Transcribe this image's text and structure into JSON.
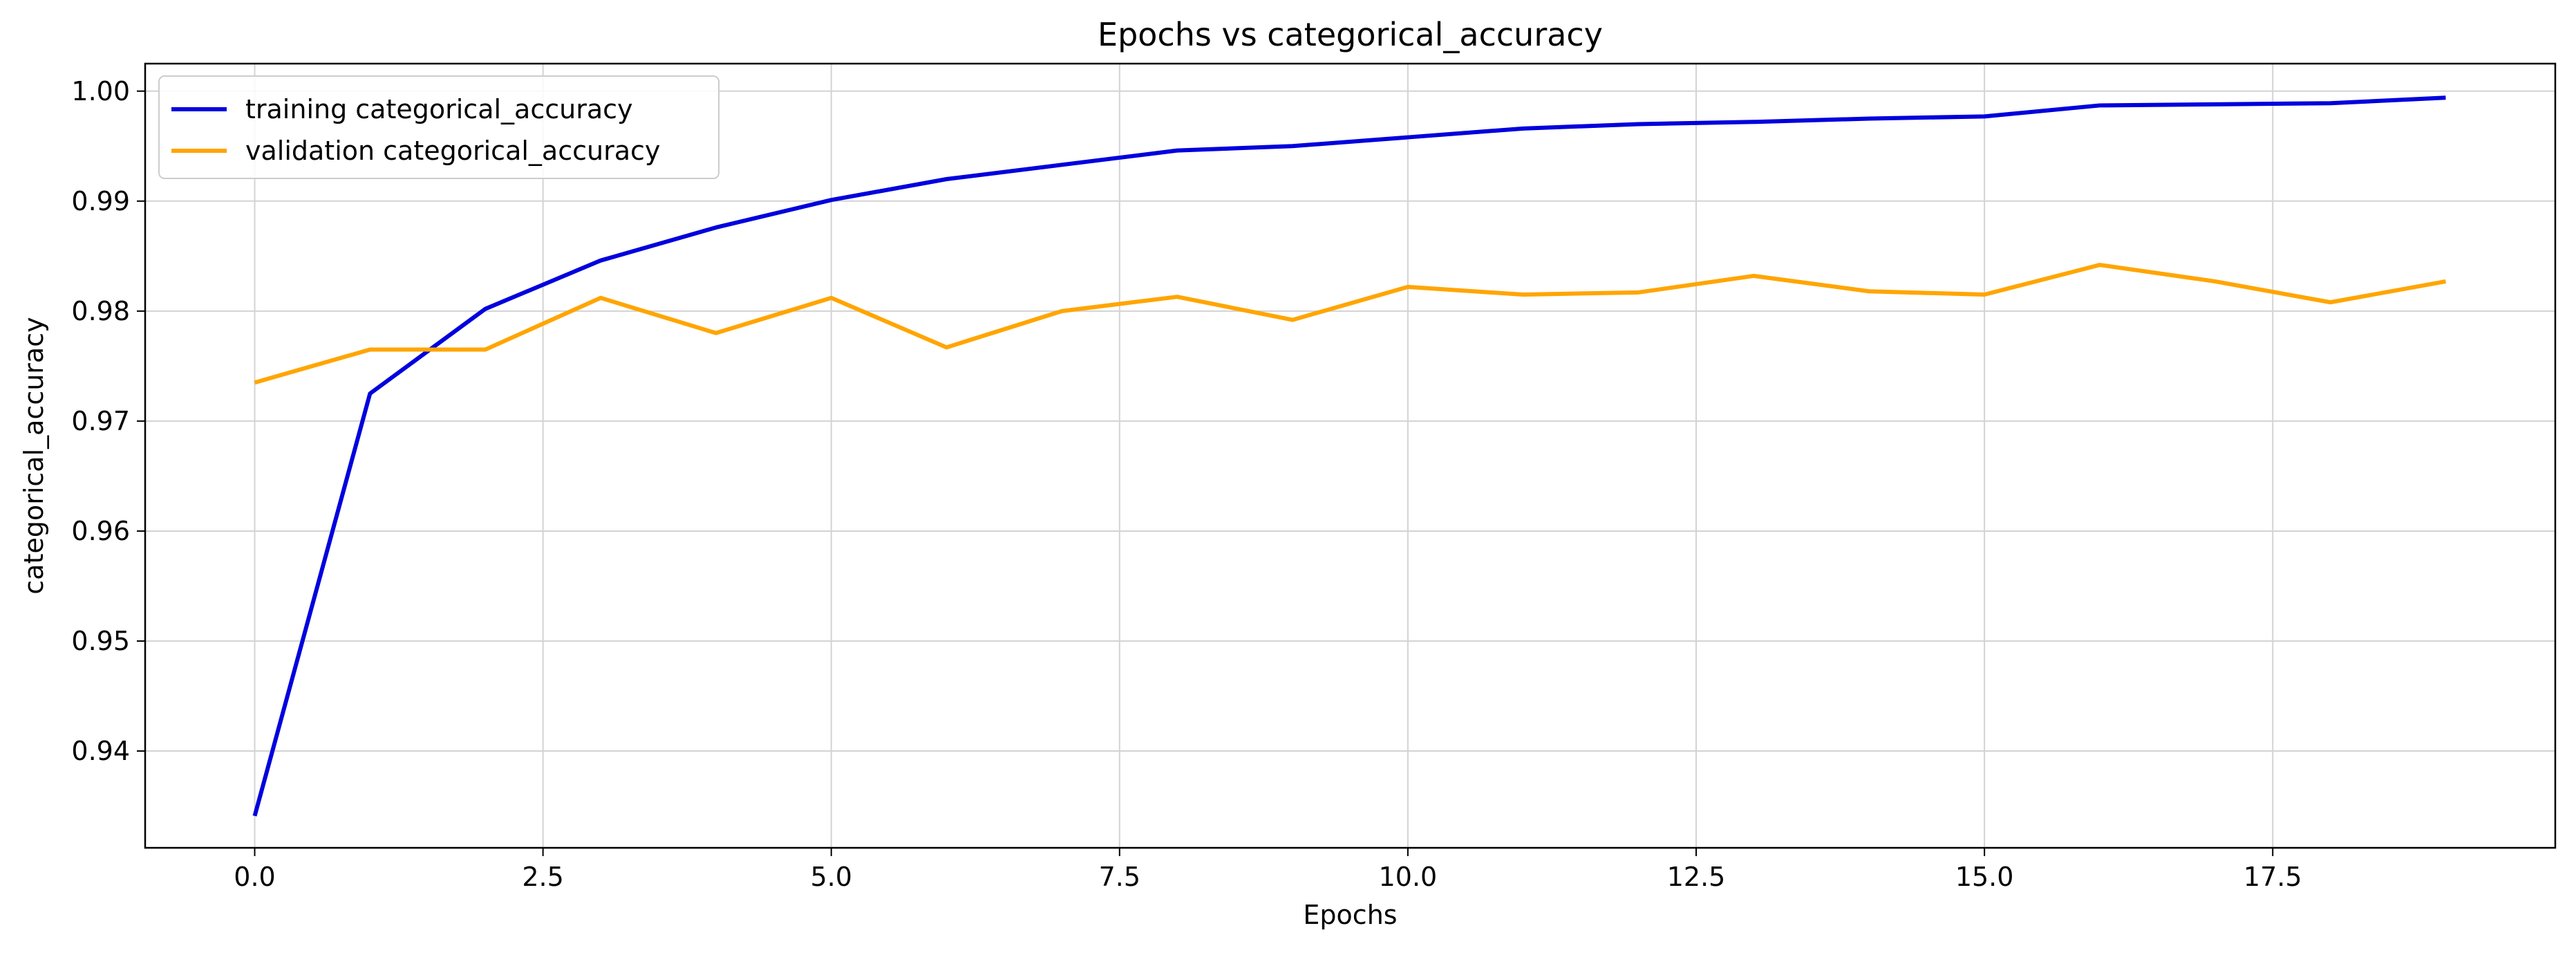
{
  "chart_data": {
    "type": "line",
    "title": "Epochs vs categorical_accuracy",
    "xlabel": "Epochs",
    "ylabel": "categorical_accuracy",
    "x": [
      0,
      1,
      2,
      3,
      4,
      5,
      6,
      7,
      8,
      9,
      10,
      11,
      12,
      13,
      14,
      15,
      16,
      17,
      18,
      19
    ],
    "series": [
      {
        "name": "training categorical_accuracy",
        "color": "#0000dd",
        "values": [
          0.9341,
          0.9725,
          0.9802,
          0.9846,
          0.9876,
          0.9901,
          0.992,
          0.9933,
          0.9946,
          0.995,
          0.9958,
          0.9966,
          0.997,
          0.9972,
          0.9975,
          0.9977,
          0.9987,
          0.9988,
          0.9989,
          0.9994
        ]
      },
      {
        "name": "validation categorical_accuracy",
        "color": "#ffa500",
        "values": [
          0.9735,
          0.9765,
          0.9765,
          0.9812,
          0.978,
          0.9812,
          0.9767,
          0.98,
          0.9813,
          0.9792,
          0.9822,
          0.9815,
          0.9817,
          0.9832,
          0.9818,
          0.9815,
          0.9842,
          0.9827,
          0.9808,
          0.9827
        ]
      }
    ],
    "xlim": [
      -0.95,
      19.95
    ],
    "ylim": [
      0.9312,
      1.0025
    ],
    "xticks": [
      0.0,
      2.5,
      5.0,
      7.5,
      10.0,
      12.5,
      15.0,
      17.5
    ],
    "xtick_labels": [
      "0.0",
      "2.5",
      "5.0",
      "7.5",
      "10.0",
      "12.5",
      "15.0",
      "17.5"
    ],
    "yticks": [
      0.94,
      0.95,
      0.96,
      0.97,
      0.98,
      0.99,
      1.0
    ],
    "ytick_labels": [
      "0.94",
      "0.95",
      "0.96",
      "0.97",
      "0.98",
      "0.99",
      "1.00"
    ],
    "grid": true,
    "legend_position": "upper-left"
  }
}
